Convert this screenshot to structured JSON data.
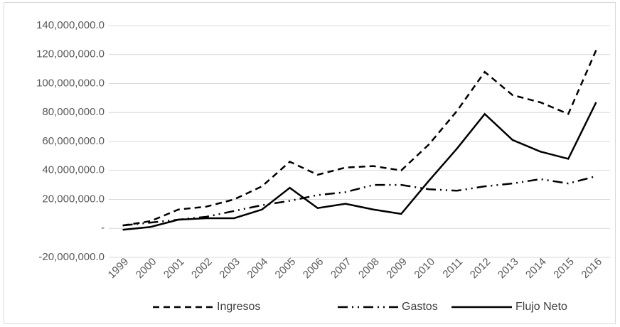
{
  "chart_data": {
    "type": "line",
    "categories": [
      "1999",
      "2000",
      "2001",
      "2002",
      "2003",
      "2004",
      "2005",
      "2006",
      "2007",
      "2008",
      "2009",
      "2010",
      "2011",
      "2012",
      "2013",
      "2014",
      "2015",
      "2016"
    ],
    "series": [
      {
        "name": "Ingresos",
        "color": "#000000",
        "dash": "dashed",
        "values": [
          2000000,
          5000000,
          13000000,
          15000000,
          20000000,
          29000000,
          46000000,
          37000000,
          42000000,
          43000000,
          40000000,
          58000000,
          81000000,
          108000000,
          92000000,
          87000000,
          79000000,
          123000000
        ]
      },
      {
        "name": "Gastos",
        "color": "#000000",
        "dash": "dash-dot-dot",
        "values": [
          2000000,
          4000000,
          6000000,
          8000000,
          12000000,
          16000000,
          19000000,
          23000000,
          25000000,
          30000000,
          30000000,
          27000000,
          26000000,
          29000000,
          31000000,
          34000000,
          31000000,
          36000000
        ]
      },
      {
        "name": "Flujo Neto",
        "color": "#000000",
        "dash": "solid",
        "values": [
          -1000000,
          1000000,
          6000000,
          7000000,
          7000000,
          13000000,
          28000000,
          14000000,
          17000000,
          13000000,
          10000000,
          33000000,
          55000000,
          79000000,
          61000000,
          53000000,
          48000000,
          87000000
        ]
      }
    ],
    "ylim": [
      -20000000,
      140000000
    ],
    "yticks": [
      {
        "value": -20000000,
        "label": "-20,000,000.0"
      },
      {
        "value": 0,
        "label": "-"
      },
      {
        "value": 20000000,
        "label": "20,000,000.0"
      },
      {
        "value": 40000000,
        "label": "40,000,000.0"
      },
      {
        "value": 60000000,
        "label": "60,000,000.0"
      },
      {
        "value": 80000000,
        "label": "80,000,000.0"
      },
      {
        "value": 100000000,
        "label": "100,000,000.0"
      },
      {
        "value": 120000000,
        "label": "120,000,000.0"
      },
      {
        "value": 140000000,
        "label": "140,000,000.0"
      }
    ],
    "grid": true,
    "legend": "bottom"
  }
}
